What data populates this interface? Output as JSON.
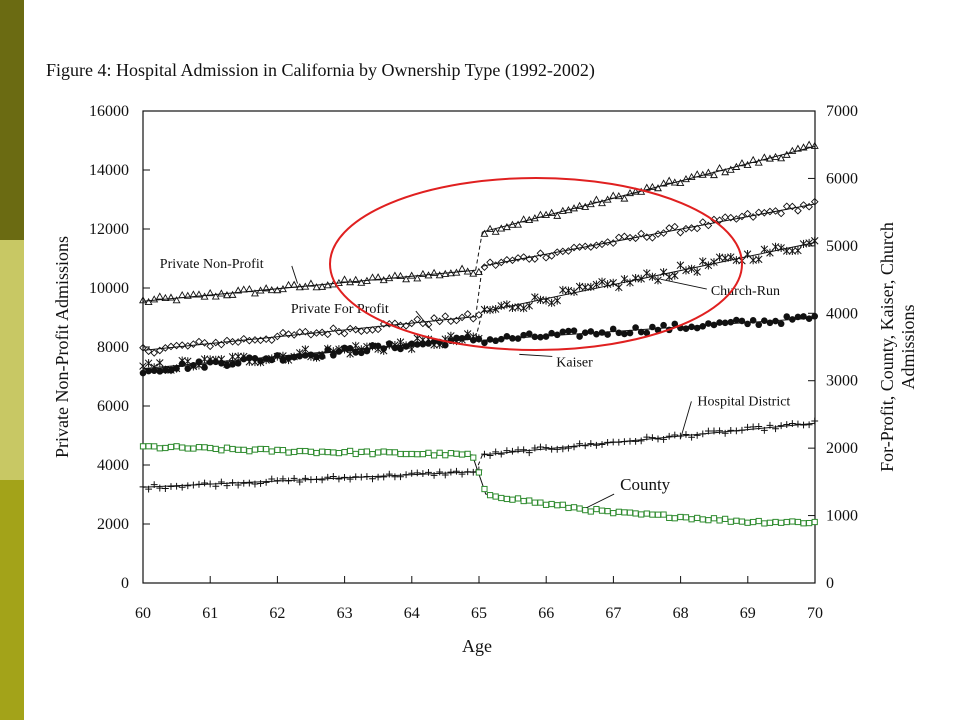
{
  "colors": {
    "sidebar_top": "#6b6b12",
    "sidebar_mid": "#c8c864",
    "sidebar_bottom": "#a3a319",
    "highlight_circle": "#e02020",
    "county_marker": "#2e8b2e"
  },
  "figure_title": "Figure 4: Hospital Admission in California by Ownership Type (1992-2002)",
  "chart_data": {
    "type": "scatter",
    "title": "Figure 4: Hospital Admission in California by Ownership Type (1992-2002)",
    "xlabel": "Age",
    "ylabel_left": "Private Non-Profit Admissions",
    "ylabel_right_line1": "For-Profit, County, Kaiser, Church",
    "ylabel_right_line2": "Admissions",
    "xlim": [
      60,
      70
    ],
    "ylim_left": [
      0,
      16000
    ],
    "ylim_right": [
      0,
      7000
    ],
    "x_ticks": [
      "60",
      "61",
      "62",
      "63",
      "64",
      "65",
      "66",
      "67",
      "68",
      "69",
      "70"
    ],
    "y_ticks_left": [
      "0",
      "2000",
      "4000",
      "6000",
      "8000",
      "10000",
      "12000",
      "14000",
      "16000"
    ],
    "y_ticks_right": [
      "0",
      "1000",
      "2000",
      "3000",
      "4000",
      "5000",
      "6000",
      "7000"
    ],
    "grid": false,
    "series": [
      {
        "name": "Private Non-Profit",
        "axis": "left",
        "marker": "triangle",
        "segments": [
          {
            "x": [
              60,
              64.95
            ],
            "y": [
              9550,
              10600
            ]
          },
          {
            "x": [
              65.05,
              70
            ],
            "y": [
              11900,
              14800
            ]
          }
        ]
      },
      {
        "name": "Private For Profit",
        "axis": "right",
        "marker": "diamond",
        "segments": [
          {
            "x": [
              60,
              64.95
            ],
            "y": [
              3450,
              3950
            ]
          },
          {
            "x": [
              65.05,
              70
            ],
            "y": [
              4700,
              5620
            ]
          }
        ]
      },
      {
        "name": "Church-Run",
        "axis": "right",
        "marker": "star",
        "segments": [
          {
            "x": [
              60,
              64.95
            ],
            "y": [
              3180,
              3630
            ]
          },
          {
            "x": [
              65.05,
              70
            ],
            "y": [
              4020,
              5050
            ]
          }
        ]
      },
      {
        "name": "Kaiser",
        "axis": "right",
        "marker": "dot",
        "segments": [
          {
            "x": [
              60,
              64.95
            ],
            "y": [
              3160,
              3620
            ]
          },
          {
            "x": [
              65.05,
              70
            ],
            "y": [
              3600,
              3930
            ]
          }
        ]
      },
      {
        "name": "Hospital District",
        "axis": "right",
        "marker": "plus",
        "segments": [
          {
            "x": [
              60,
              64.95
            ],
            "y": [
              1420,
              1650
            ]
          },
          {
            "x": [
              65.05,
              70
            ],
            "y": [
              1900,
              2370
            ]
          }
        ]
      },
      {
        "name": "County",
        "axis": "right",
        "marker": "square",
        "knots": {
          "x": [
            60,
            62,
            64.9,
            65.1,
            66,
            67,
            68,
            69,
            70
          ],
          "y": [
            2020,
            1960,
            1900,
            1320,
            1170,
            1040,
            980,
            910,
            900
          ]
        }
      }
    ],
    "annotations": [
      {
        "text": "Private Non-Profit",
        "label_x": 60.25,
        "label_y_left": 10680,
        "point_x": 62.3,
        "point_y_left": 10150
      },
      {
        "text": "Private For Profit",
        "label_x": 62.2,
        "label_y_left": 9150,
        "point_x": 64.3,
        "point_y_left": 8550
      },
      {
        "text": "Church-Run",
        "label_x": 68.45,
        "label_y_left": 9760,
        "point_x": 67.7,
        "point_y_left": 10300
      },
      {
        "text": "Kaiser",
        "label_x": 66.15,
        "label_y_left": 7340,
        "point_x": 65.6,
        "point_y_left": 7750
      },
      {
        "text": "Hospital District",
        "label_x": 68.25,
        "label_y_left": 6020,
        "point_x": 68.0,
        "point_y_left": 4900
      },
      {
        "text": "County",
        "label_x": 67.1,
        "label_y_left": 3150,
        "point_x": 66.6,
        "point_y_left": 2550
      }
    ]
  }
}
